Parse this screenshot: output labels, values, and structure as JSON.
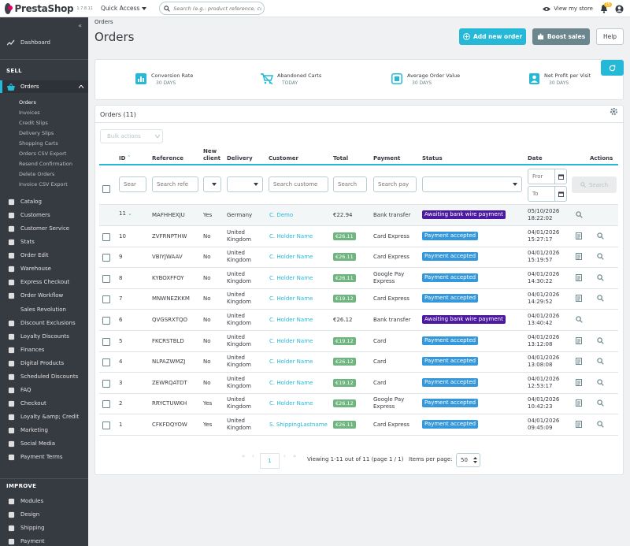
{
  "app": {
    "logo_text": "PrestaShop",
    "version": "1.7.8.11",
    "quick_access": "Quick Access",
    "search_placeholder": "Search (e.g.: product reference, custon",
    "view_store": "View my store",
    "notification_count": "15"
  },
  "sidebar": {
    "dashboard": "Dashboard",
    "sell_title": "SELL",
    "orders": "Orders",
    "orders_sub": [
      "Orders",
      "Invoices",
      "Credit Slips",
      "Delivery Slips",
      "Shopping Carts",
      "Orders CSV Export",
      "Resend Confirmation",
      "Delete Orders",
      "Invoice CSV Export"
    ],
    "items": [
      {
        "label": "Catalog",
        "icon": "store-icon"
      },
      {
        "label": "Customers",
        "icon": "account-icon"
      },
      {
        "label": "Customer Service",
        "icon": "chat-icon"
      },
      {
        "label": "Stats",
        "icon": "stats-icon"
      },
      {
        "label": "Order Edit",
        "icon": "pencil-icon"
      },
      {
        "label": "Warehouse",
        "icon": "warehouse-icon"
      },
      {
        "label": "Express Checkout",
        "icon": "card-icon"
      },
      {
        "label": "Order Workflow",
        "icon": "workflow-icon"
      }
    ],
    "sales_revolution": "Sales Revolution",
    "items2": [
      {
        "label": "Discount Exclusions",
        "icon": "block-icon"
      },
      {
        "label": "Loyalty Discounts",
        "icon": "discount-icon"
      },
      {
        "label": "Finances",
        "icon": "bank-icon"
      },
      {
        "label": "Digital Products",
        "icon": "download-icon"
      },
      {
        "label": "Scheduled Discounts",
        "icon": "schedule-icon"
      },
      {
        "label": "FAQ",
        "icon": "faq-icon"
      },
      {
        "label": "Checkout",
        "icon": "cart-icon"
      },
      {
        "label": "Loyalty &amp; Credit",
        "icon": "gift-icon"
      },
      {
        "label": "Marketing",
        "icon": "megaphone-icon"
      },
      {
        "label": "Social Media",
        "icon": "share-icon"
      },
      {
        "label": "Payment Terms",
        "icon": "payment-icon"
      }
    ],
    "improve_title": "IMPROVE",
    "items3": [
      {
        "label": "Modules",
        "icon": "puzzle-icon"
      },
      {
        "label": "Design",
        "icon": "desktop-icon"
      },
      {
        "label": "Shipping",
        "icon": "truck-icon"
      },
      {
        "label": "Payment",
        "icon": "payment-card-icon"
      }
    ]
  },
  "header": {
    "breadcrumb": "Orders",
    "title": "Orders",
    "add_new_order": "Add new order",
    "boost_sales": "Boost sales",
    "help": "Help"
  },
  "kpis": [
    {
      "label": "Conversion Rate",
      "sub": "30 DAYS"
    },
    {
      "label": "Abandoned Carts",
      "sub": "TODAY"
    },
    {
      "label": "Average Order Value",
      "sub": "30 DAYS"
    },
    {
      "label": "Net Profit per Visit",
      "sub": "30 DAYS"
    }
  ],
  "orders": {
    "title": "Orders (11)",
    "bulk_actions": "Bulk actions",
    "columns": {
      "id": "ID",
      "reference": "Reference",
      "new_client": "New client",
      "delivery": "Delivery",
      "customer": "Customer",
      "total": "Total",
      "payment": "Payment",
      "status": "Status",
      "date": "Date",
      "actions": "Actions"
    },
    "filters": {
      "id": "Sear",
      "reference": "Search refe",
      "customer": "Search custome",
      "total": "Search",
      "payment": "Search pay",
      "date_from": "Fror",
      "date_to": "To",
      "search_button": "Search"
    },
    "rows": [
      {
        "id": "11",
        "ref": "MAFHHEXJU",
        "new": "Yes",
        "delivery": [
          "Germany"
        ],
        "customer": "C. Demo",
        "total": "€22.94",
        "total_badge": false,
        "payment": [
          "Bank transfer"
        ],
        "status": "Awaiting bank wire payment",
        "status_color": "#4b1aa0",
        "date": [
          "05/10/2026",
          "18:22:02"
        ],
        "invoice": false
      },
      {
        "id": "10",
        "ref": "ZVFRNPTHW",
        "new": "No",
        "delivery": [
          "United",
          "Kingdom"
        ],
        "customer": "C. Holder Name",
        "total": "€26.11",
        "total_badge": true,
        "payment": [
          "Card Express"
        ],
        "status": "Payment accepted",
        "status_color": "#3498db",
        "date": [
          "04/01/2026",
          "15:27:17"
        ],
        "invoice": true
      },
      {
        "id": "9",
        "ref": "VBIYJWAAV",
        "new": "No",
        "delivery": [
          "United",
          "Kingdom"
        ],
        "customer": "C. Holder Name",
        "total": "€26.11",
        "total_badge": true,
        "payment": [
          "Card Express"
        ],
        "status": "Payment accepted",
        "status_color": "#3498db",
        "date": [
          "04/01/2026",
          "15:19:57"
        ],
        "invoice": true
      },
      {
        "id": "8",
        "ref": "KYBOXFFOY",
        "new": "No",
        "delivery": [
          "United",
          "Kingdom"
        ],
        "customer": "C. Holder Name",
        "total": "€26.11",
        "total_badge": true,
        "payment": [
          "Google Pay",
          "Express"
        ],
        "status": "Payment accepted",
        "status_color": "#3498db",
        "date": [
          "04/01/2026",
          "14:30:22"
        ],
        "invoice": true
      },
      {
        "id": "7",
        "ref": "MNWNEZKKM",
        "new": "No",
        "delivery": [
          "United",
          "Kingdom"
        ],
        "customer": "C. Holder Name",
        "total": "€19.12",
        "total_badge": true,
        "payment": [
          "Card Express"
        ],
        "status": "Payment accepted",
        "status_color": "#3498db",
        "date": [
          "04/01/2026",
          "14:29:52"
        ],
        "invoice": true
      },
      {
        "id": "6",
        "ref": "QVGSRXTQO",
        "new": "No",
        "delivery": [
          "United",
          "Kingdom"
        ],
        "customer": "C. Holder Name",
        "total": "€26.12",
        "total_badge": false,
        "payment": [
          "Bank transfer"
        ],
        "status": "Awaiting bank wire payment",
        "status_color": "#4b1aa0",
        "date": [
          "04/01/2026",
          "13:40:42"
        ],
        "invoice": false
      },
      {
        "id": "5",
        "ref": "FKCRSTBLD",
        "new": "No",
        "delivery": [
          "United",
          "Kingdom"
        ],
        "customer": "C. Holder Name",
        "total": "€19.12",
        "total_badge": true,
        "payment": [
          "Card"
        ],
        "status": "Payment accepted",
        "status_color": "#3498db",
        "date": [
          "04/01/2026",
          "13:12:08"
        ],
        "invoice": true
      },
      {
        "id": "4",
        "ref": "NLPAZWMZJ",
        "new": "No",
        "delivery": [
          "United",
          "Kingdom"
        ],
        "customer": "C. Holder Name",
        "total": "€26.12",
        "total_badge": true,
        "payment": [
          "Card"
        ],
        "status": "Payment accepted",
        "status_color": "#3498db",
        "date": [
          "04/01/2026",
          "13:08:08"
        ],
        "invoice": true
      },
      {
        "id": "3",
        "ref": "ZEWRQATDT",
        "new": "No",
        "delivery": [
          "United",
          "Kingdom"
        ],
        "customer": "C. Holder Name",
        "total": "€19.12",
        "total_badge": true,
        "payment": [
          "Card"
        ],
        "status": "Payment accepted",
        "status_color": "#3498db",
        "date": [
          "04/01/2026",
          "12:53:17"
        ],
        "invoice": true
      },
      {
        "id": "2",
        "ref": "RRYCTUWKH",
        "new": "Yes",
        "delivery": [
          "United",
          "Kingdom"
        ],
        "customer": "C. Holder Name",
        "total": "€26.12",
        "total_badge": true,
        "payment": [
          "Google Pay",
          "Express"
        ],
        "status": "Payment accepted",
        "status_color": "#3498db",
        "date": [
          "04/01/2026",
          "10:42:23"
        ],
        "invoice": true
      },
      {
        "id": "1",
        "ref": "CFKFDQYOW",
        "new": "Yes",
        "delivery": [
          "United",
          "Kingdom"
        ],
        "customer": "S. ShippingLastname",
        "total": "€26.11",
        "total_badge": true,
        "payment": [
          "Card Express"
        ],
        "status": "Payment accepted",
        "status_color": "#3498db",
        "date": [
          "04/01/2026",
          "09:45:09"
        ],
        "invoice": true
      }
    ]
  },
  "pagination": {
    "current_page": "1",
    "viewing": "Viewing 1-11 out of 11 (page 1 / 1)",
    "items_per_page_label": "Items per page:",
    "items_per_page": "50"
  }
}
